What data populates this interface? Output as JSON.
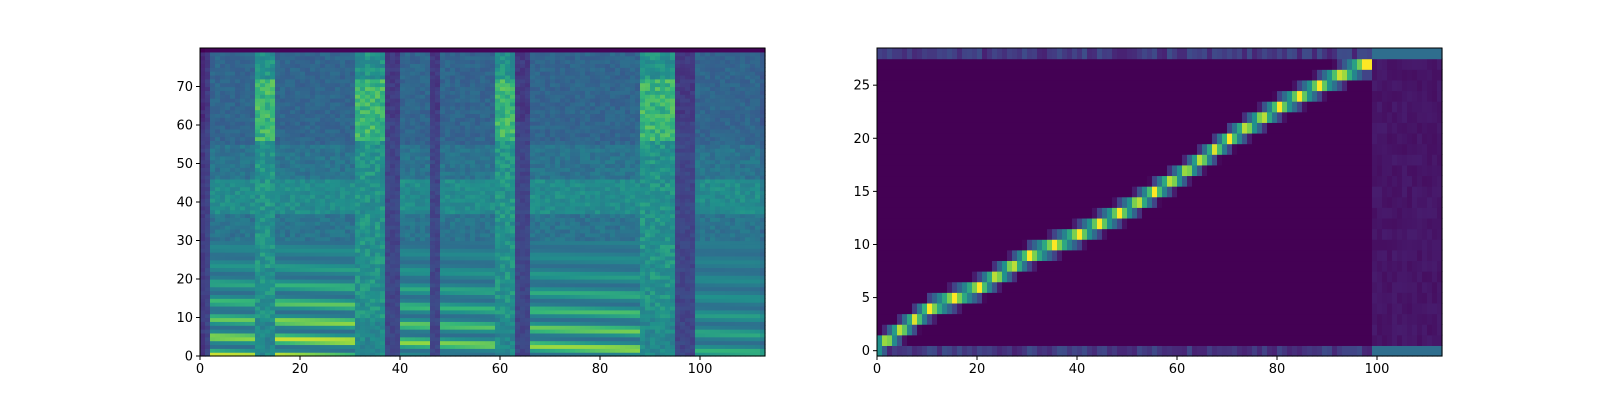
{
  "chart_data": [
    {
      "type": "heatmap",
      "name": "mel-spectrogram",
      "title": "",
      "xlabel": "",
      "ylabel": "",
      "colormap": "viridis",
      "xlim": [
        0,
        113
      ],
      "ylim": [
        0,
        80
      ],
      "grid": false,
      "x_ticks": [
        0,
        20,
        40,
        60,
        80,
        100
      ],
      "y_ticks": [
        0,
        10,
        20,
        30,
        40,
        50,
        60,
        70
      ],
      "n_time_frames": 113,
      "n_mel_bins": 80,
      "segments": [
        {
          "start": 0,
          "end": 2,
          "type": "silence"
        },
        {
          "start": 2,
          "end": 11,
          "type": "voiced",
          "strength": 0.9
        },
        {
          "start": 11,
          "end": 15,
          "type": "fricative"
        },
        {
          "start": 15,
          "end": 31,
          "type": "voiced",
          "strength": 1.0
        },
        {
          "start": 31,
          "end": 37,
          "type": "fricative"
        },
        {
          "start": 37,
          "end": 40,
          "type": "silence"
        },
        {
          "start": 40,
          "end": 46,
          "type": "voiced",
          "strength": 0.85
        },
        {
          "start": 46,
          "end": 48,
          "type": "silence"
        },
        {
          "start": 48,
          "end": 59,
          "type": "voiced",
          "strength": 0.8
        },
        {
          "start": 59,
          "end": 63,
          "type": "fricative"
        },
        {
          "start": 63,
          "end": 66,
          "type": "silence"
        },
        {
          "start": 66,
          "end": 88,
          "type": "voiced",
          "strength": 0.85
        },
        {
          "start": 88,
          "end": 95,
          "type": "fricative"
        },
        {
          "start": 95,
          "end": 99,
          "type": "silence"
        },
        {
          "start": 99,
          "end": 113,
          "type": "voiced",
          "strength": 0.55
        }
      ]
    },
    {
      "type": "heatmap",
      "name": "attention-alignment",
      "title": "",
      "xlabel": "",
      "ylabel": "",
      "colormap": "viridis",
      "xlim": [
        0,
        113
      ],
      "ylim": [
        -0.5,
        28.5
      ],
      "grid": false,
      "x_ticks": [
        0,
        20,
        40,
        60,
        80,
        100
      ],
      "y_ticks": [
        0,
        5,
        10,
        15,
        20,
        25
      ],
      "n_decoder_steps": 113,
      "n_encoder_steps": 29,
      "alignment_path": [
        {
          "x": 0,
          "y": 0.5
        },
        {
          "x": 10,
          "y": 4
        },
        {
          "x": 20,
          "y": 6
        },
        {
          "x": 30,
          "y": 9
        },
        {
          "x": 40,
          "y": 11
        },
        {
          "x": 50,
          "y": 13.5
        },
        {
          "x": 60,
          "y": 16.5
        },
        {
          "x": 70,
          "y": 20
        },
        {
          "x": 80,
          "y": 23
        },
        {
          "x": 90,
          "y": 25.5
        },
        {
          "x": 97,
          "y": 27
        },
        {
          "x": 113,
          "y": 27
        }
      ],
      "edge_rows_tail_start": 99
    }
  ]
}
